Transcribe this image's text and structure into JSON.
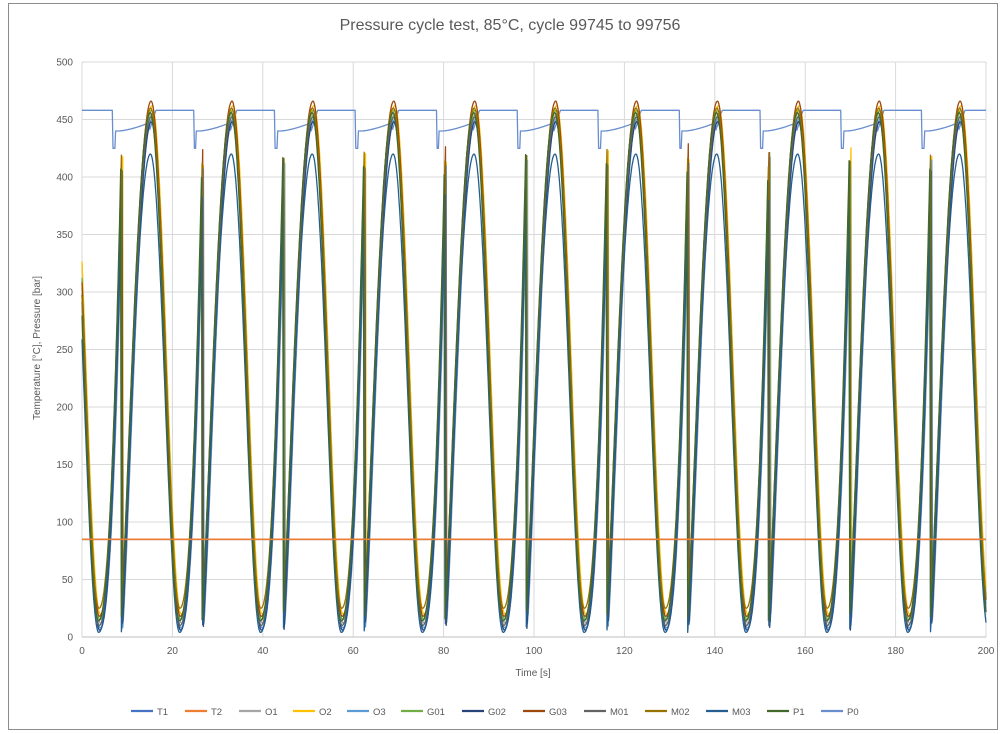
{
  "chart_data": {
    "type": "line",
    "title": "Pressure cycle test, 85°C, cycle 99745 to 99756",
    "xlabel": "Time [s]",
    "ylabel": "Temperature [°C], Pressure [bar]",
    "xlim": [
      0,
      200
    ],
    "ylim": [
      0,
      500
    ],
    "x_ticks": [
      "0",
      "20",
      "40",
      "60",
      "80",
      "100",
      "120",
      "140",
      "160",
      "180",
      "200"
    ],
    "y_ticks": [
      "0",
      "50",
      "100",
      "150",
      "200",
      "250",
      "300",
      "350",
      "400",
      "450",
      "500"
    ],
    "grid": true,
    "legend_position": "bottom",
    "cycle_period_s": 17.9,
    "series": [
      {
        "name": "T1",
        "color": "#4472c4",
        "kind": "constant",
        "value": 85
      },
      {
        "name": "T2",
        "color": "#ed7d31",
        "kind": "constant",
        "value": 85
      },
      {
        "name": "O1",
        "color": "#a5a5a5",
        "kind": "cycle",
        "peak": 455,
        "min": 12
      },
      {
        "name": "O2",
        "color": "#ffc000",
        "kind": "cycle",
        "peak": 462,
        "min": 20
      },
      {
        "name": "O3",
        "color": "#5b9bd5",
        "kind": "cycle",
        "peak": 450,
        "min": 8
      },
      {
        "name": "G01",
        "color": "#70ad47",
        "kind": "cycle",
        "peak": 458,
        "min": 15
      },
      {
        "name": "G02",
        "color": "#264478",
        "kind": "cycle",
        "peak": 448,
        "min": 6
      },
      {
        "name": "G03",
        "color": "#9e480e",
        "kind": "cycle",
        "peak": 466,
        "min": 18
      },
      {
        "name": "M01",
        "color": "#636363",
        "kind": "cycle",
        "peak": 452,
        "min": 10
      },
      {
        "name": "M02",
        "color": "#997300",
        "kind": "cycle",
        "peak": 460,
        "min": 25
      },
      {
        "name": "M03",
        "color": "#255e91",
        "kind": "cycle",
        "peak": 420,
        "min": 4
      },
      {
        "name": "P1",
        "color": "#43682b",
        "kind": "cycle",
        "peak": 456,
        "min": 14
      },
      {
        "name": "P0",
        "color": "#698ed0",
        "kind": "pressure",
        "high": 458,
        "low": 440,
        "dip": 425
      }
    ]
  }
}
